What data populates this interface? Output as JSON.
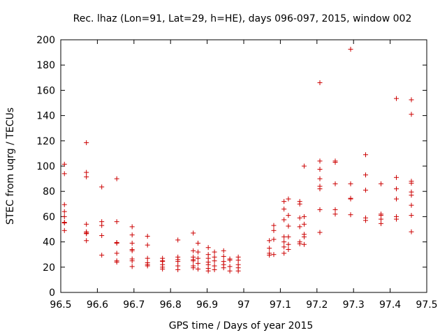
{
  "chart_data": {
    "type": "scatter",
    "title": "Rec. lhaz (Lon=91, Lat=29, h=HE), days 096-097, 2015, window 002",
    "xlabel": "GPS time / Days of year 2015",
    "ylabel": "STEC from uqrg / TECUs",
    "xlim": [
      96.5,
      97.5
    ],
    "ylim": [
      0,
      200
    ],
    "xticks": [
      96.5,
      96.6,
      96.7,
      96.8,
      96.9,
      97,
      97.1,
      97.2,
      97.3,
      97.4,
      97.5
    ],
    "xtick_labels": [
      "96.5",
      "96.6",
      "96.7",
      "96.8",
      "96.9",
      "97",
      "97.1",
      "97.2",
      "97.3",
      "97.4",
      "97.5"
    ],
    "yticks": [
      0,
      20,
      40,
      60,
      80,
      100,
      120,
      140,
      160,
      180,
      200
    ],
    "ytick_labels": [
      "0",
      "20",
      "40",
      "60",
      "80",
      "100",
      "120",
      "140",
      "160",
      "180",
      "200"
    ],
    "grid": false,
    "marker": "+",
    "color": "#cc0000",
    "points": [
      [
        96.51,
        101.5
      ],
      [
        96.51,
        94
      ],
      [
        96.51,
        69.5
      ],
      [
        96.51,
        64
      ],
      [
        96.51,
        60
      ],
      [
        96.51,
        55.5
      ],
      [
        96.51,
        55
      ],
      [
        96.51,
        49
      ],
      [
        96.57,
        118.5
      ],
      [
        96.57,
        95
      ],
      [
        96.57,
        91.5
      ],
      [
        96.57,
        54
      ],
      [
        96.57,
        48
      ],
      [
        96.57,
        47
      ],
      [
        96.57,
        46.5
      ],
      [
        96.57,
        41
      ],
      [
        96.612,
        83.5
      ],
      [
        96.612,
        56
      ],
      [
        96.612,
        53
      ],
      [
        96.612,
        45
      ],
      [
        96.612,
        29.5
      ],
      [
        96.653,
        90
      ],
      [
        96.653,
        56
      ],
      [
        96.653,
        39.5
      ],
      [
        96.653,
        39
      ],
      [
        96.653,
        31
      ],
      [
        96.653,
        25
      ],
      [
        96.653,
        24
      ],
      [
        96.695,
        52
      ],
      [
        96.695,
        45.5
      ],
      [
        96.695,
        39
      ],
      [
        96.695,
        34
      ],
      [
        96.695,
        33
      ],
      [
        96.695,
        26.5
      ],
      [
        96.695,
        25
      ],
      [
        96.695,
        20.5
      ],
      [
        96.737,
        44.5
      ],
      [
        96.737,
        37.5
      ],
      [
        96.737,
        27
      ],
      [
        96.737,
        23.5
      ],
      [
        96.737,
        22
      ],
      [
        96.737,
        21
      ],
      [
        96.778,
        27
      ],
      [
        96.778,
        25
      ],
      [
        96.778,
        24.5
      ],
      [
        96.778,
        22
      ],
      [
        96.778,
        20
      ],
      [
        96.778,
        18.5
      ],
      [
        96.82,
        41.5
      ],
      [
        96.82,
        28
      ],
      [
        96.82,
        26
      ],
      [
        96.82,
        24.5
      ],
      [
        96.82,
        21
      ],
      [
        96.82,
        18
      ],
      [
        96.862,
        47
      ],
      [
        96.862,
        33
      ],
      [
        96.862,
        28
      ],
      [
        96.862,
        26
      ],
      [
        96.862,
        25
      ],
      [
        96.862,
        21
      ],
      [
        96.862,
        19.5
      ],
      [
        96.875,
        39
      ],
      [
        96.875,
        32
      ],
      [
        96.875,
        27
      ],
      [
        96.875,
        23
      ],
      [
        96.875,
        18.5
      ],
      [
        96.903,
        35.5
      ],
      [
        96.903,
        30
      ],
      [
        96.903,
        27
      ],
      [
        96.903,
        24
      ],
      [
        96.903,
        22
      ],
      [
        96.903,
        19
      ],
      [
        96.903,
        17
      ],
      [
        96.92,
        32
      ],
      [
        96.92,
        28
      ],
      [
        96.92,
        25
      ],
      [
        96.92,
        21
      ],
      [
        96.92,
        18
      ],
      [
        96.945,
        33
      ],
      [
        96.945,
        28.5
      ],
      [
        96.945,
        24.5
      ],
      [
        96.945,
        22
      ],
      [
        96.945,
        19.5
      ],
      [
        96.962,
        26.5
      ],
      [
        96.962,
        25.5
      ],
      [
        96.962,
        20.5
      ],
      [
        96.962,
        17
      ],
      [
        96.985,
        28
      ],
      [
        96.985,
        25.5
      ],
      [
        96.985,
        22
      ],
      [
        96.985,
        19.5
      ],
      [
        96.985,
        17
      ],
      [
        97.07,
        41
      ],
      [
        97.07,
        35
      ],
      [
        97.07,
        31
      ],
      [
        97.07,
        29.5
      ],
      [
        97.082,
        53
      ],
      [
        97.082,
        49
      ],
      [
        97.082,
        42
      ],
      [
        97.082,
        30
      ],
      [
        97.11,
        72
      ],
      [
        97.11,
        66
      ],
      [
        97.11,
        57.5
      ],
      [
        97.11,
        44
      ],
      [
        97.11,
        40
      ],
      [
        97.11,
        36
      ],
      [
        97.11,
        31
      ],
      [
        97.122,
        74
      ],
      [
        97.122,
        61
      ],
      [
        97.122,
        52.5
      ],
      [
        97.122,
        44
      ],
      [
        97.122,
        38
      ],
      [
        97.122,
        34
      ],
      [
        97.153,
        72
      ],
      [
        97.153,
        70
      ],
      [
        97.153,
        59
      ],
      [
        97.153,
        52
      ],
      [
        97.153,
        40
      ],
      [
        97.153,
        38.5
      ],
      [
        97.165,
        100
      ],
      [
        97.165,
        60
      ],
      [
        97.165,
        54
      ],
      [
        97.165,
        46
      ],
      [
        97.165,
        44
      ],
      [
        97.165,
        38
      ],
      [
        97.208,
        166
      ],
      [
        97.208,
        104
      ],
      [
        97.208,
        97.5
      ],
      [
        97.208,
        90
      ],
      [
        97.208,
        84
      ],
      [
        97.208,
        82
      ],
      [
        97.208,
        65.5
      ],
      [
        97.208,
        47.5
      ],
      [
        97.25,
        104
      ],
      [
        97.25,
        103
      ],
      [
        97.25,
        86
      ],
      [
        97.25,
        65.5
      ],
      [
        97.25,
        62
      ],
      [
        97.292,
        192.5
      ],
      [
        97.292,
        86
      ],
      [
        97.292,
        74.5
      ],
      [
        97.292,
        74
      ],
      [
        97.292,
        61.5
      ],
      [
        97.333,
        109
      ],
      [
        97.333,
        93
      ],
      [
        97.333,
        81
      ],
      [
        97.333,
        59
      ],
      [
        97.333,
        57
      ],
      [
        97.375,
        86
      ],
      [
        97.375,
        62
      ],
      [
        97.375,
        61
      ],
      [
        97.375,
        58
      ],
      [
        97.375,
        54.5
      ],
      [
        97.417,
        153.5
      ],
      [
        97.417,
        91
      ],
      [
        97.417,
        82
      ],
      [
        97.417,
        74
      ],
      [
        97.417,
        60
      ],
      [
        97.417,
        58
      ],
      [
        97.458,
        152.5
      ],
      [
        97.458,
        141
      ],
      [
        97.458,
        88
      ],
      [
        97.458,
        86.5
      ],
      [
        97.458,
        79.5
      ],
      [
        97.458,
        77
      ],
      [
        97.458,
        69
      ],
      [
        97.458,
        61
      ],
      [
        97.458,
        48
      ]
    ]
  }
}
